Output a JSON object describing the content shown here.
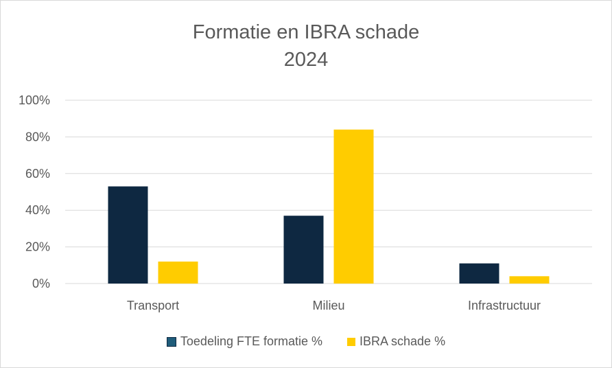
{
  "chart_data": {
    "type": "bar",
    "title": "Formatie en IBRA schade",
    "subtitle": "2024",
    "categories": [
      "Transport",
      "Milieu",
      "Infrastructuur"
    ],
    "series": [
      {
        "name": "Toedeling FTE formatie %",
        "values": [
          53,
          37,
          11
        ],
        "color": "#0e2841"
      },
      {
        "name": "IBRA schade %",
        "values": [
          12,
          84,
          4
        ],
        "color": "#ffcc00"
      }
    ],
    "yticks": [
      "0%",
      "20%",
      "40%",
      "60%",
      "80%",
      "100%"
    ],
    "ylim": [
      0,
      100
    ],
    "grid": true,
    "legend_position": "bottom",
    "swatch_colors": [
      "#1f5c7a",
      "#ffcc00"
    ]
  }
}
